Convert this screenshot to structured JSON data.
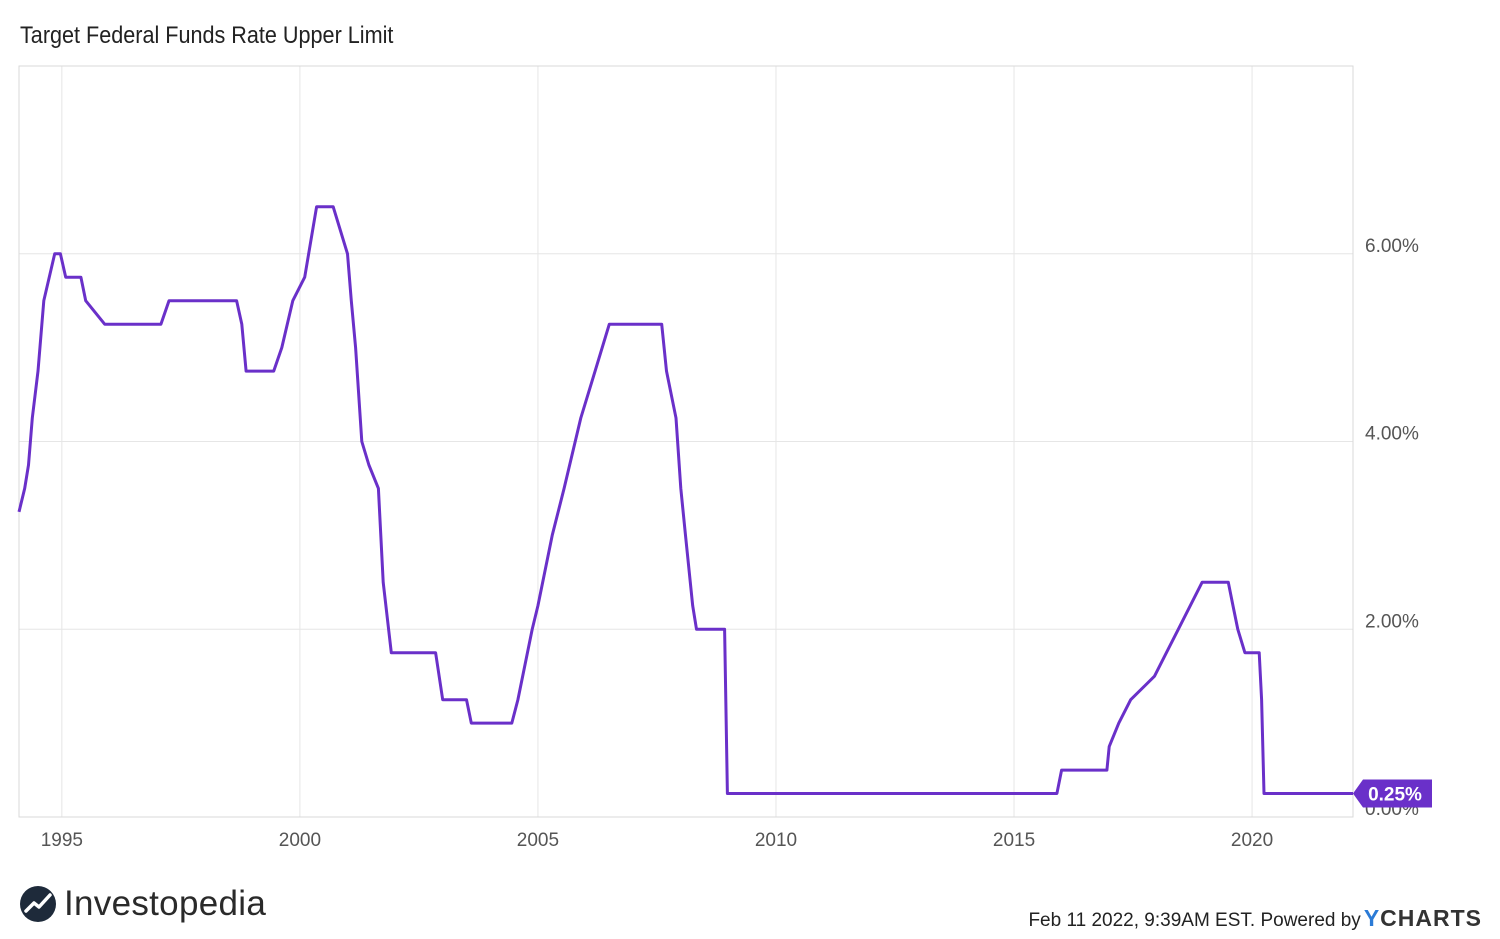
{
  "chart_data": {
    "type": "line",
    "title": "Target Federal Funds Rate Upper Limit",
    "xlabel": "",
    "ylabel": "",
    "xlim": [
      1994.1,
      2022.12
    ],
    "ylim": [
      0,
      8
    ],
    "x_ticks": [
      1995,
      2000,
      2005,
      2010,
      2015,
      2020
    ],
    "x_tick_labels": [
      "1995",
      "2000",
      "2005",
      "2010",
      "2015",
      "2020"
    ],
    "y_ticks": [
      0,
      2,
      4,
      6
    ],
    "y_tick_labels": [
      "0.00%",
      "2.00%",
      "4.00%",
      "6.00%"
    ],
    "grid": true,
    "legend": "none",
    "line_color": "#6a30c9",
    "last_value_label": "0.25%",
    "series": [
      {
        "x": [
          1994.1,
          1994.22,
          1994.3,
          1994.38,
          1994.5,
          1994.62,
          1994.85,
          1994.97,
          1995.08,
          1995.4,
          1995.5,
          1995.9,
          1996.1,
          1997.08,
          1997.25,
          1998.67,
          1998.78,
          1998.87,
          1999.45,
          1999.62,
          1999.85,
          2000.1,
          2000.35,
          2000.7,
          2001.0,
          2001.08,
          2001.17,
          2001.3,
          2001.45,
          2001.65,
          2001.75,
          2001.92,
          2002.85,
          2003.0,
          2003.5,
          2003.6,
          2004.45,
          2004.58,
          2004.88,
          2005.0,
          2005.3,
          2005.55,
          2005.9,
          2006.2,
          2006.5,
          2007.6,
          2007.7,
          2007.9,
          2008.0,
          2008.1,
          2008.25,
          2008.33,
          2008.92,
          2008.98,
          2015.9,
          2016.0,
          2016.95,
          2017.0,
          2017.2,
          2017.45,
          2017.95,
          2018.2,
          2018.45,
          2018.7,
          2018.95,
          2019.5,
          2019.6,
          2019.7,
          2019.85,
          2020.15,
          2020.2,
          2020.25,
          2022.12
        ],
        "y": [
          3.25,
          3.5,
          3.75,
          4.25,
          4.75,
          5.5,
          6.0,
          6.0,
          5.75,
          5.75,
          5.5,
          5.25,
          5.25,
          5.25,
          5.5,
          5.5,
          5.25,
          4.75,
          4.75,
          5.0,
          5.5,
          5.75,
          6.5,
          6.5,
          6.0,
          5.5,
          5.0,
          4.0,
          3.75,
          3.5,
          2.5,
          1.75,
          1.75,
          1.25,
          1.25,
          1.0,
          1.0,
          1.25,
          2.0,
          2.25,
          3.0,
          3.5,
          4.25,
          4.75,
          5.25,
          5.25,
          4.75,
          4.25,
          3.5,
          3.0,
          2.25,
          2.0,
          2.0,
          0.25,
          0.25,
          0.5,
          0.5,
          0.75,
          1.0,
          1.25,
          1.5,
          1.75,
          2.0,
          2.25,
          2.5,
          2.5,
          2.25,
          2.0,
          1.75,
          1.75,
          1.25,
          0.25,
          0.25
        ]
      }
    ]
  },
  "branding": {
    "logo_text": "Investopedia",
    "logo_icon": "investopedia-logo-icon"
  },
  "footer": {
    "timestamp": "Feb 11 2022, 9:39AM EST.",
    "powered_by": "Powered by",
    "brand_y": "Y",
    "brand_rest": "CHARTS"
  }
}
